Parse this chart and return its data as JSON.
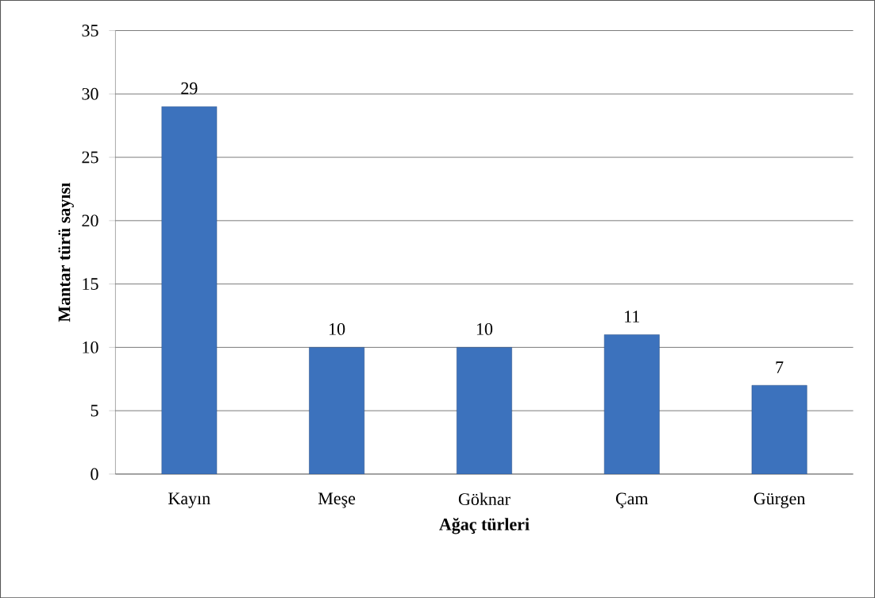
{
  "chart_data": {
    "type": "bar",
    "xlabel": "Ağaç türleri",
    "ylabel": "Mantar türü sayısı",
    "categories": [
      "Kayın",
      "Meşe",
      "Göknar",
      "Çam",
      "Gürgen"
    ],
    "values": [
      29,
      10,
      10,
      11,
      7
    ],
    "color": "#3c72bd",
    "ylim": [
      0,
      35
    ],
    "yticks": [
      0,
      5,
      10,
      15,
      20,
      25,
      30,
      35
    ],
    "grid": "y",
    "data_labels": true
  }
}
